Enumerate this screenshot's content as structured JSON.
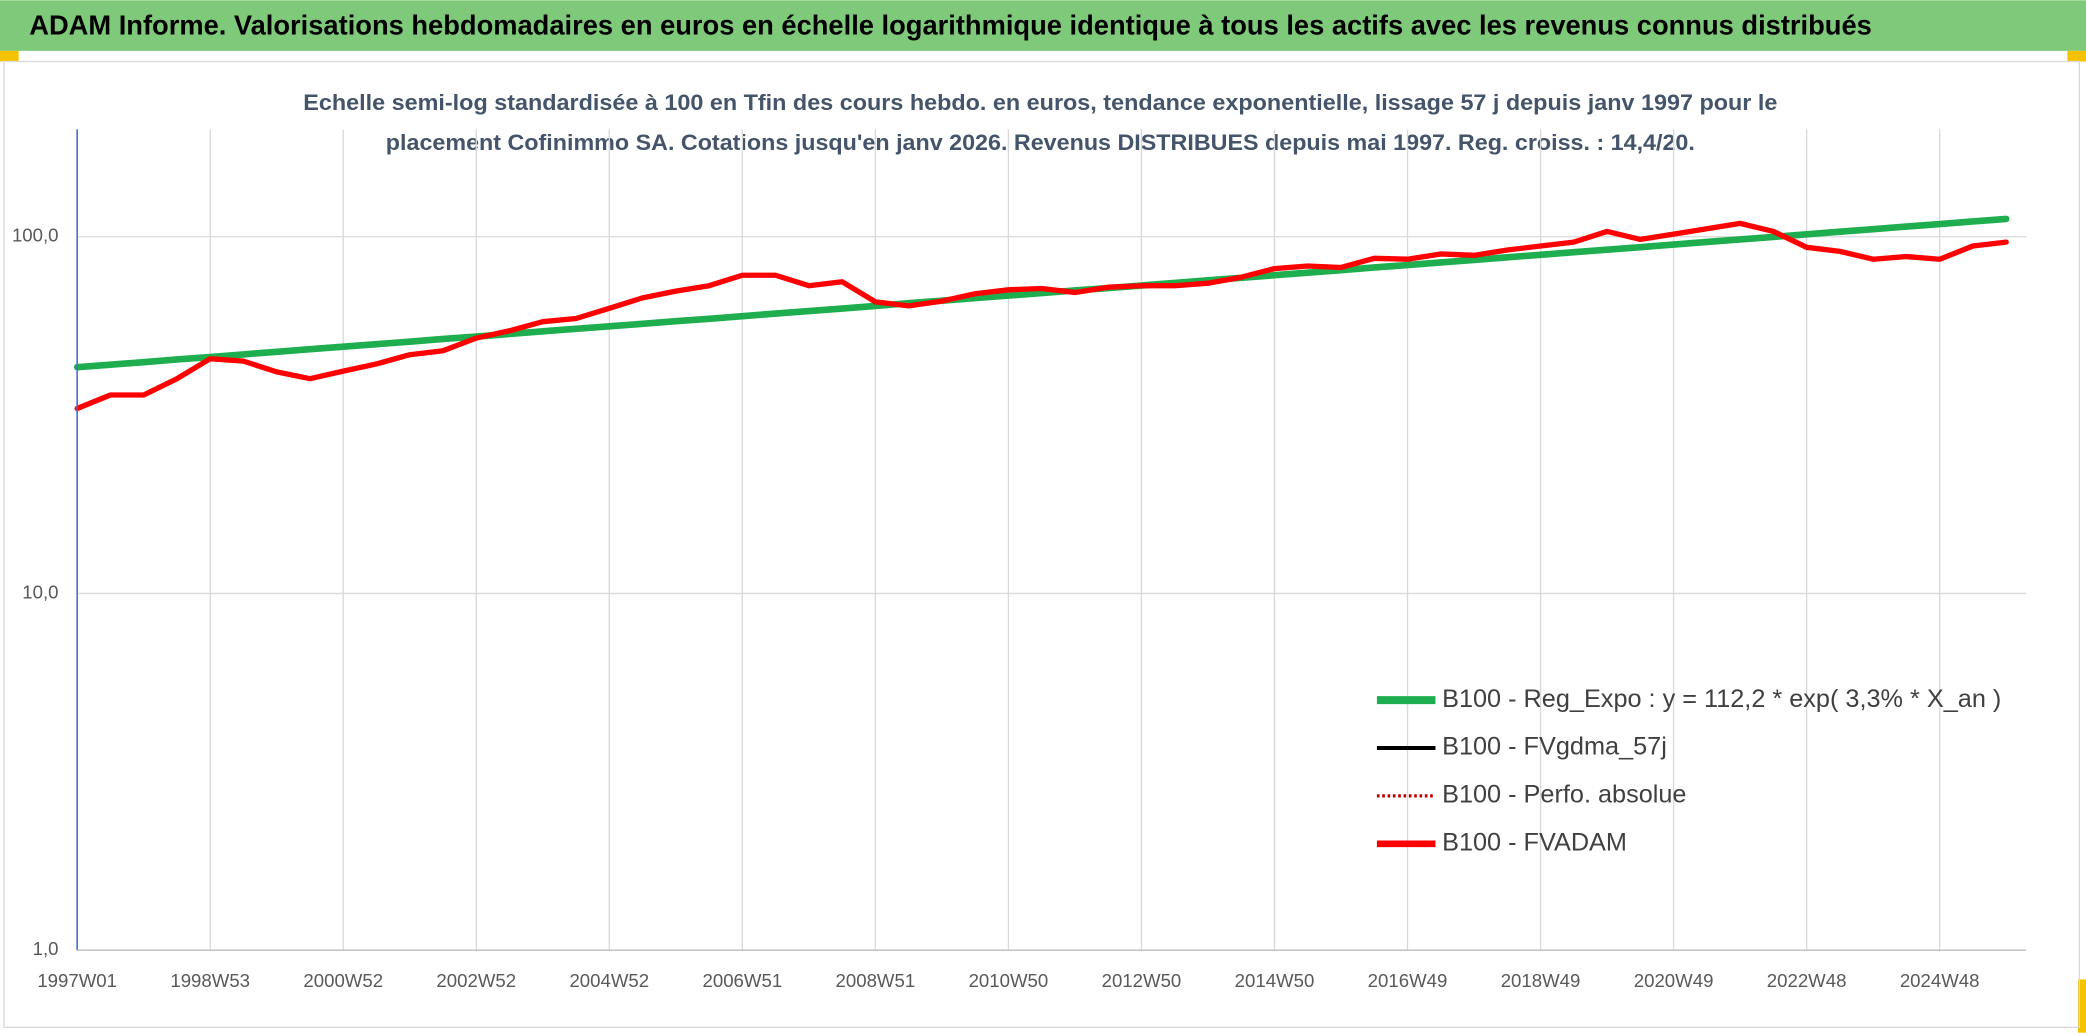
{
  "chart_data": {
    "type": "line",
    "title": "ADAM Informe. Valorisations hebdomadaires en euros en échelle logarithmique identique à tous les actifs avec les revenus connus distribués",
    "subtitle": [
      "Echelle semi-log standardisée à 100 en Tfin des cours hebdo. en euros, tendance exponentielle, lissage 57 j depuis janv 1997 pour le",
      "placement Cofinimmo SA. Cotations jusqu'en janv 2026. Revenus DISTRIBUES depuis mai 1997. Reg. croiss. : 14,4/20."
    ],
    "log_y": true,
    "grid": true,
    "legend": "lower right",
    "ylim": [
      1,
      200
    ],
    "yticks": [
      {
        "value": 1,
        "label": "1,0"
      },
      {
        "value": 10,
        "label": "10,0"
      },
      {
        "value": 100,
        "label": "100,0"
      }
    ],
    "categories": [
      "1997W01",
      null,
      null,
      null,
      "1998W53",
      null,
      null,
      null,
      "2000W52",
      null,
      null,
      null,
      "2002W52",
      null,
      null,
      null,
      "2004W52",
      null,
      null,
      null,
      "2006W51",
      null,
      null,
      null,
      "2008W51",
      null,
      null,
      null,
      "2010W50",
      null,
      null,
      null,
      "2012W50",
      null,
      null,
      null,
      "2014W50",
      null,
      null,
      null,
      "2016W49",
      null,
      null,
      null,
      "2018W49",
      null,
      null,
      null,
      "2020W49",
      null,
      null,
      null,
      "2022W48",
      null,
      null,
      null,
      "2024W48",
      null,
      null
    ],
    "series": [
      {
        "name": "B100 - Reg_Expo : y = 112,2 * exp( 3,3% *  X_an )",
        "color": "#1fae4f",
        "width": 5,
        "values": [
          43.1,
          43.8,
          44.5,
          45.3,
          46.0,
          46.8,
          47.6,
          48.4,
          49.2,
          50.0,
          50.8,
          51.7,
          52.5,
          53.4,
          54.3,
          55.2,
          56.1,
          57.0,
          58.0,
          58.9,
          59.9,
          60.9,
          61.9,
          62.9,
          64.0,
          65.1,
          66.2,
          67.3,
          68.4,
          69.5,
          70.7,
          71.8,
          73.0,
          74.2,
          75.5,
          76.7,
          78.0,
          79.3,
          80.6,
          82.0,
          83.3,
          84.7,
          86.1,
          87.6,
          89.0,
          90.5,
          92.0,
          93.5,
          95.1,
          96.7,
          98.3,
          99.9,
          101.6,
          103.3,
          105.0,
          106.8,
          108.5,
          110.4,
          112.2
        ]
      },
      {
        "name": "B100 - FVgdma_57j",
        "color": "#000000",
        "width": 2,
        "values": [
          33,
          36,
          36,
          40,
          45.5,
          44.8,
          41.8,
          40,
          42,
          44,
          46.7,
          47.9,
          52,
          54.5,
          57.8,
          59,
          63,
          67.4,
          70.4,
          72.9,
          78,
          78,
          72.9,
          74.8,
          65.7,
          64,
          66,
          69.2,
          71,
          71.6,
          69.8,
          72.2,
          72.9,
          72.9,
          74.1,
          77,
          81.4,
          82.8,
          82,
          87,
          86.5,
          89.5,
          88.7,
          91.8,
          94.2,
          96.6,
          103.5,
          98.3,
          101.7,
          105.3,
          109,
          103.5,
          93.4,
          91,
          86.5,
          88,
          86.5,
          94.2,
          96.6
        ]
      },
      {
        "name": "B100 - Perfo. absolue",
        "color": "#c00000",
        "width": 1.5,
        "dash": true,
        "values": [
          33,
          36,
          36,
          40,
          45.5,
          44.8,
          41.8,
          40,
          42,
          44,
          46.7,
          47.9,
          52,
          54.5,
          57.8,
          59,
          63,
          67.4,
          70.4,
          72.9,
          78,
          78,
          72.9,
          74.8,
          65.7,
          64,
          66,
          69.2,
          71,
          71.6,
          69.8,
          72.2,
          72.9,
          72.9,
          74.1,
          77,
          81.4,
          82.8,
          82,
          87,
          86.5,
          89.5,
          88.7,
          91.8,
          94.2,
          96.6,
          103.5,
          98.3,
          101.7,
          105.3,
          109,
          103.5,
          93.4,
          91,
          86.5,
          88,
          86.5,
          94.2,
          96.6
        ]
      },
      {
        "name": "B100 - FVADAM",
        "color": "#ff0000",
        "width": 4,
        "values": [
          33,
          36,
          36,
          40,
          45.5,
          44.8,
          41.8,
          40,
          42,
          44,
          46.7,
          47.9,
          52,
          54.5,
          57.8,
          59,
          63,
          67.4,
          70.4,
          72.9,
          78,
          78,
          72.9,
          74.8,
          65.7,
          64,
          66,
          69.2,
          71,
          71.6,
          69.8,
          72.2,
          72.9,
          72.9,
          74.1,
          77,
          81.4,
          82.8,
          82,
          87,
          86.5,
          89.5,
          88.7,
          91.8,
          94.2,
          96.6,
          103.5,
          98.3,
          101.7,
          105.3,
          109,
          103.5,
          93.4,
          91,
          86.5,
          88,
          86.5,
          94.2,
          96.6
        ]
      }
    ]
  }
}
